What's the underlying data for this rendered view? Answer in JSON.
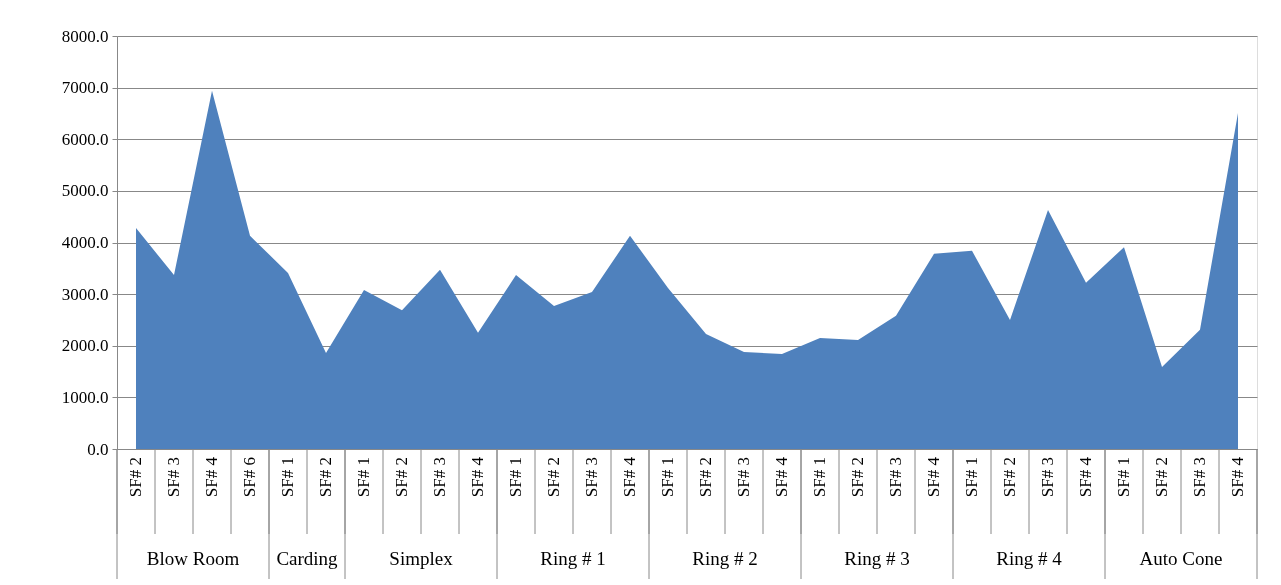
{
  "chart_data": {
    "type": "area",
    "categories": [
      "SF# 2",
      "SF# 3",
      "SF# 4",
      "SF# 6",
      "SF# 1",
      "SF# 2",
      "SF# 1",
      "SF# 2",
      "SF# 3",
      "SF# 4",
      "SF# 1",
      "SF# 2",
      "SF# 3",
      "SF# 4",
      "SF# 1",
      "SF# 2",
      "SF# 3",
      "SF# 4",
      "SF# 1",
      "SF# 2",
      "SF# 3",
      "SF# 4",
      "SF# 1",
      "SF# 2",
      "SF# 3",
      "SF# 4",
      "SF# 1",
      "SF# 2",
      "SF# 3",
      "SF# 4"
    ],
    "series": [
      {
        "color": "#4f81bd",
        "values": [
          4280,
          3370,
          6940,
          4130,
          3410,
          1860,
          3080,
          2690,
          3470,
          2250,
          3370,
          2770,
          3040,
          4130,
          3120,
          2230,
          1880,
          1840,
          2150,
          2110,
          2580,
          3780,
          3840,
          2500,
          4630,
          3220,
          3910,
          1590,
          2310,
          6510
        ]
      }
    ],
    "ylim": [
      0,
      8000
    ],
    "yticks": [
      {
        "value": 0,
        "label": "0.0"
      },
      {
        "value": 1000,
        "label": "1000.0"
      },
      {
        "value": 2000,
        "label": "2000.0"
      },
      {
        "value": 3000,
        "label": "3000.0"
      },
      {
        "value": 4000,
        "label": "4000.0"
      },
      {
        "value": 5000,
        "label": "5000.0"
      },
      {
        "value": 6000,
        "label": "6000.0"
      },
      {
        "value": 7000,
        "label": "7000.0"
      },
      {
        "value": 8000,
        "label": "8000.0"
      }
    ],
    "grid": "y",
    "annotations": [
      "Blow Room",
      "Carding",
      "Simplex",
      "Ring # 1",
      "Ring # 2",
      "Ring # 3",
      "Ring # 4",
      "Auto Cone"
    ]
  }
}
